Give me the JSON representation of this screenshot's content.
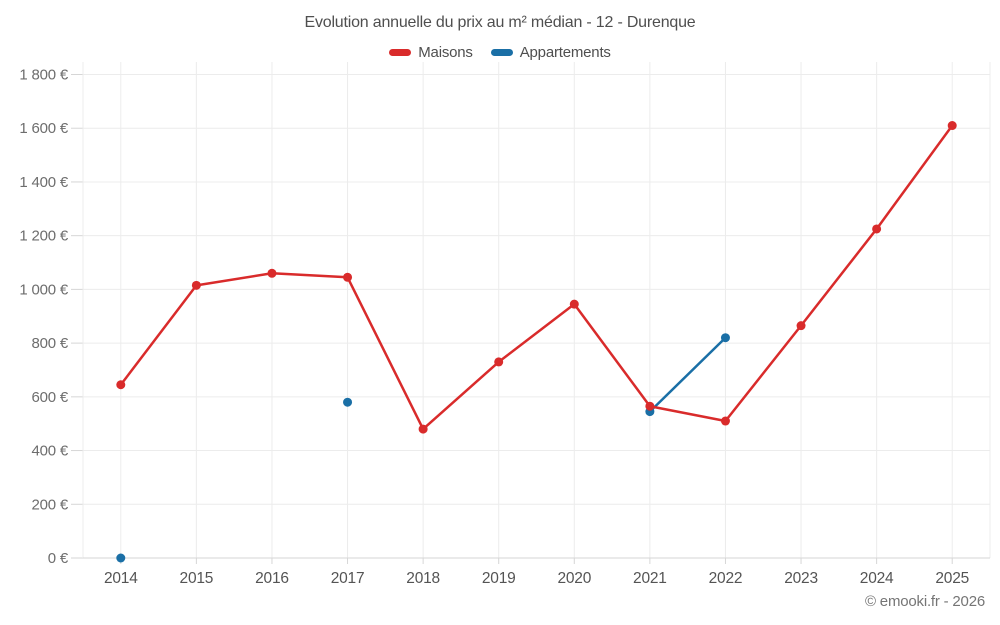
{
  "title": "Evolution annuelle du prix au m² médian - 12 - Durenque",
  "legend": {
    "items": [
      {
        "label": "Maisons",
        "color": "#d92b2b"
      },
      {
        "label": "Appartements",
        "color": "#1a6fa6"
      }
    ]
  },
  "footer": {
    "credit": "© emooki.fr - 2026"
  },
  "chart_data": {
    "type": "line",
    "title": "Evolution annuelle du prix au m² médian - 12 - Durenque",
    "categories": [
      "2014",
      "2015",
      "2016",
      "2017",
      "2018",
      "2019",
      "2020",
      "2021",
      "2022",
      "2023",
      "2024",
      "2025"
    ],
    "series": [
      {
        "name": "Appartements",
        "color": "#1a6fa6",
        "values": [
          0,
          null,
          null,
          580,
          null,
          null,
          null,
          545,
          820,
          null,
          null,
          null
        ]
      },
      {
        "name": "Maisons",
        "color": "#d92b2b",
        "values": [
          645,
          1015,
          1060,
          1045,
          480,
          730,
          945,
          565,
          510,
          865,
          1225,
          1610
        ]
      }
    ],
    "ylim": [
      0,
      1800
    ],
    "ytick_step": 200,
    "y_unit_suffix": "€",
    "xlabel": "",
    "ylabel": "",
    "grid": true,
    "legend_position": "top",
    "style": {
      "grid_color": "#ececec",
      "axis_color": "#d6d6d6",
      "tick_color": "#d6d6d6",
      "y_label_color": "#6d6d6d",
      "x_label_color": "#545454",
      "line_width": 2.5,
      "marker_radius": 4.5
    }
  }
}
